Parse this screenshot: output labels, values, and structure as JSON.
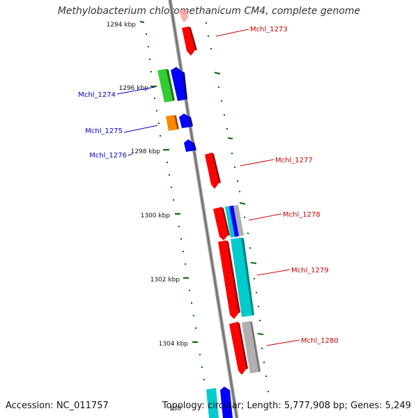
{
  "title": "Methylobacterium chloromethanicum CM4, complete genome",
  "footer": {
    "accession": "Accession: NC_011757",
    "topology": "Topology: circular; Length: 5,777,908 bp; Genes: 5,249"
  },
  "scale_labels": [
    "1294 kbp",
    "1296 kbp",
    "1298 kbp",
    "1300 kbp",
    "1302 kbp",
    "1304 kbp",
    "130"
  ],
  "genes": [
    {
      "name": "Mchl_1273",
      "color": "#cc0000"
    },
    {
      "name": "Mchl_1274",
      "color": "#0000cc"
    },
    {
      "name": "Mchl_1275",
      "color": "#0000cc"
    },
    {
      "name": "Mchl_1276",
      "color": "#0000cc"
    },
    {
      "name": "Mchl_1277",
      "color": "#cc0000"
    },
    {
      "name": "Mchl_1278",
      "color": "#cc0000"
    },
    {
      "name": "Mchl_1279",
      "color": "#cc0000"
    },
    {
      "name": "Mchl_1280",
      "color": "#cc0000"
    }
  ],
  "colors": {
    "red": "#ff0000",
    "blue": "#0000ff",
    "green": "#33cc33",
    "orange": "#ff8800",
    "cyan": "#00cccc",
    "gray": "#b0b0b0",
    "tick": "#006600",
    "backbone": "#888888"
  }
}
